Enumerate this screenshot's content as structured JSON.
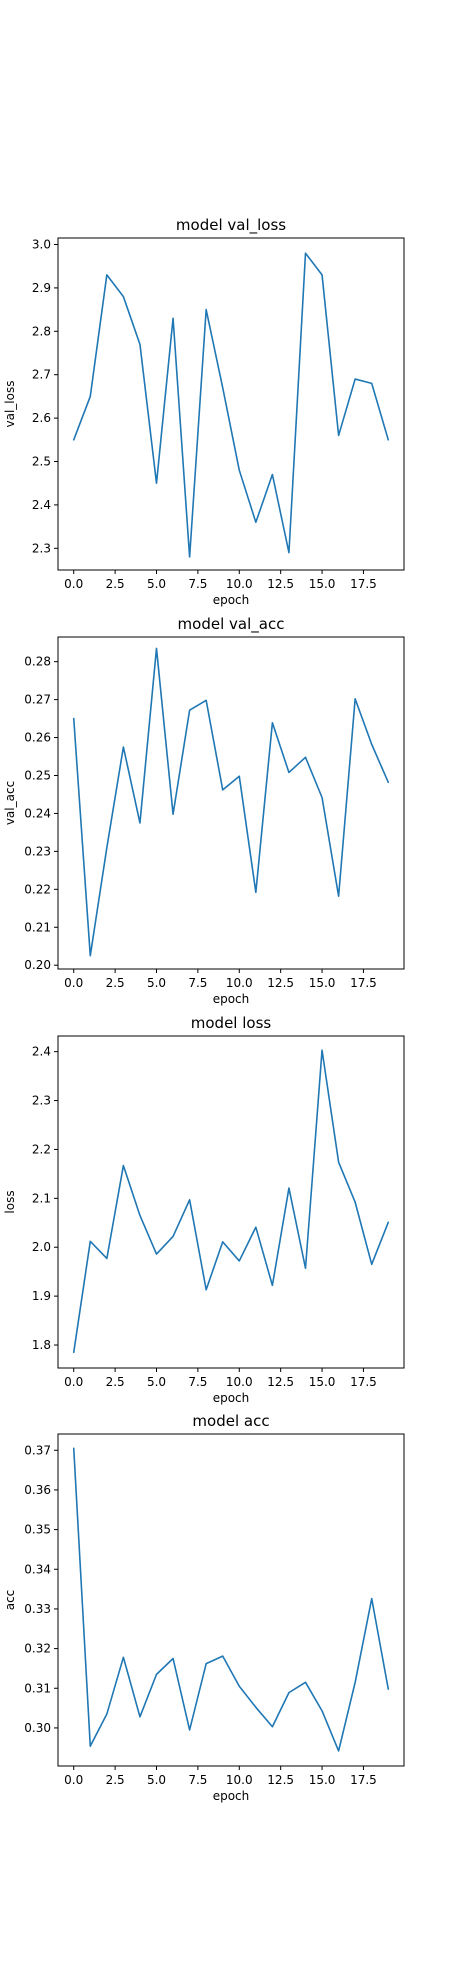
{
  "chart_data": [
    {
      "type": "line",
      "title": "model val_loss",
      "xlabel": "epoch",
      "ylabel": "val_loss",
      "xlim": [
        -0.95,
        19.95
      ],
      "ylim": [
        2.25,
        3.015
      ],
      "xticks": [
        0,
        2.5,
        5,
        7.5,
        10,
        12.5,
        15,
        17.5
      ],
      "xtick_labels": [
        "0.0",
        "2.5",
        "5.0",
        "7.5",
        "10.0",
        "12.5",
        "15.0",
        "17.5"
      ],
      "yticks": [
        2.3,
        2.4,
        2.5,
        2.6,
        2.7,
        2.8,
        2.9,
        3.0
      ],
      "ytick_labels": [
        "2.3",
        "2.4",
        "2.5",
        "2.6",
        "2.7",
        "2.8",
        "2.9",
        "3.0"
      ],
      "x": [
        0,
        1,
        2,
        3,
        4,
        5,
        6,
        7,
        8,
        9,
        10,
        11,
        12,
        13,
        14,
        15,
        16,
        17,
        18,
        19
      ],
      "series": [
        {
          "values": [
            2.55,
            2.65,
            2.93,
            2.88,
            2.77,
            2.45,
            2.83,
            2.28,
            2.85,
            2.67,
            2.48,
            2.36,
            2.47,
            2.29,
            2.98,
            2.93,
            2.56,
            2.69,
            2.68,
            2.55
          ],
          "color": "#1f77b4"
        }
      ],
      "grid": false
    },
    {
      "type": "line",
      "title": "model val_acc",
      "xlabel": "epoch",
      "ylabel": "val_acc",
      "xlim": [
        -0.95,
        19.95
      ],
      "ylim": [
        0.199,
        0.2865
      ],
      "xticks": [
        0,
        2.5,
        5,
        7.5,
        10,
        12.5,
        15,
        17.5
      ],
      "xtick_labels": [
        "0.0",
        "2.5",
        "5.0",
        "7.5",
        "10.0",
        "12.5",
        "15.0",
        "17.5"
      ],
      "yticks": [
        0.2,
        0.21,
        0.22,
        0.23,
        0.24,
        0.25,
        0.26,
        0.27,
        0.28
      ],
      "ytick_labels": [
        "0.20",
        "0.21",
        "0.22",
        "0.23",
        "0.24",
        "0.25",
        "0.26",
        "0.27",
        "0.28"
      ],
      "x": [
        0,
        1,
        2,
        3,
        4,
        5,
        6,
        7,
        8,
        9,
        10,
        11,
        12,
        13,
        14,
        15,
        16,
        17,
        18,
        19
      ],
      "series": [
        {
          "values": [
            0.265,
            0.2025,
            0.231,
            0.2575,
            0.2375,
            0.2835,
            0.2398,
            0.2672,
            0.2698,
            0.2462,
            0.2498,
            0.2192,
            0.2639,
            0.2508,
            0.2548,
            0.2442,
            0.2182,
            0.2702,
            0.2582,
            0.2482
          ],
          "color": "#1f77b4"
        }
      ],
      "grid": false
    },
    {
      "type": "line",
      "title": "model loss",
      "xlabel": "epoch",
      "ylabel": "loss",
      "xlim": [
        -0.95,
        19.95
      ],
      "ylim": [
        1.753,
        2.432
      ],
      "xticks": [
        0,
        2.5,
        5,
        7.5,
        10,
        12.5,
        15,
        17.5
      ],
      "xtick_labels": [
        "0.0",
        "2.5",
        "5.0",
        "7.5",
        "10.0",
        "12.5",
        "15.0",
        "17.5"
      ],
      "yticks": [
        1.8,
        1.9,
        2.0,
        2.1,
        2.2,
        2.3,
        2.4
      ],
      "ytick_labels": [
        "1.8",
        "1.9",
        "2.0",
        "2.1",
        "2.2",
        "2.3",
        "2.4"
      ],
      "x": [
        0,
        1,
        2,
        3,
        4,
        5,
        6,
        7,
        8,
        9,
        10,
        11,
        12,
        13,
        14,
        15,
        16,
        17,
        18,
        19
      ],
      "series": [
        {
          "values": [
            1.785,
            2.012,
            1.977,
            2.167,
            2.065,
            1.986,
            2.022,
            2.097,
            1.913,
            2.011,
            1.972,
            2.041,
            1.922,
            2.121,
            1.957,
            2.403,
            2.174,
            2.092,
            1.965,
            2.051
          ],
          "color": "#1f77b4"
        }
      ],
      "grid": false
    },
    {
      "type": "line",
      "title": "model acc",
      "xlabel": "epoch",
      "ylabel": "acc",
      "xlim": [
        -0.95,
        19.95
      ],
      "ylim": [
        0.2904,
        0.3741
      ],
      "xticks": [
        0,
        2.5,
        5,
        7.5,
        10,
        12.5,
        15,
        17.5
      ],
      "xtick_labels": [
        "0.0",
        "2.5",
        "5.0",
        "7.5",
        "10.0",
        "12.5",
        "15.0",
        "17.5"
      ],
      "yticks": [
        0.3,
        0.31,
        0.32,
        0.33,
        0.34,
        0.35,
        0.36,
        0.37
      ],
      "ytick_labels": [
        "0.30",
        "0.31",
        "0.32",
        "0.33",
        "0.34",
        "0.35",
        "0.36",
        "0.37"
      ],
      "x": [
        0,
        1,
        2,
        3,
        4,
        5,
        6,
        7,
        8,
        9,
        10,
        11,
        12,
        13,
        14,
        15,
        16,
        17,
        18,
        19
      ],
      "series": [
        {
          "values": [
            0.3705,
            0.2954,
            0.3035,
            0.3178,
            0.3028,
            0.3135,
            0.3175,
            0.2995,
            0.3162,
            0.3181,
            0.3105,
            0.3052,
            0.3003,
            0.3089,
            0.3115,
            0.3043,
            0.2942,
            0.3115,
            0.3326,
            0.3098
          ],
          "color": "#1f77b4"
        }
      ],
      "grid": false
    }
  ]
}
